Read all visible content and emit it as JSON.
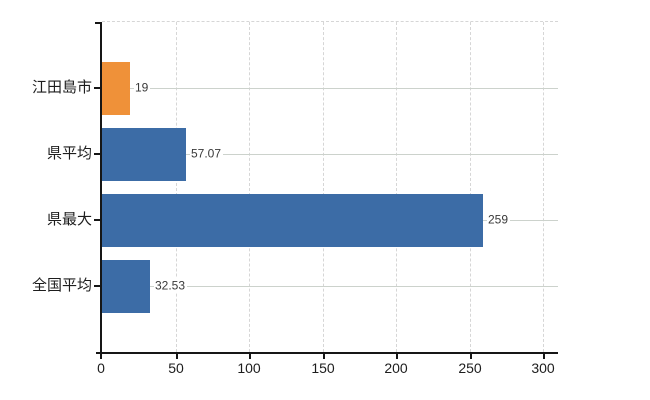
{
  "chart_data": {
    "type": "bar",
    "orientation": "horizontal",
    "title": "",
    "categories": [
      "江田島市",
      "県平均",
      "県最大",
      "全国平均"
    ],
    "values": [
      19,
      57.07,
      259,
      32.53
    ],
    "value_labels": [
      "19",
      "57.07",
      "259",
      "32.53"
    ],
    "bar_colors": [
      "#ef9139",
      "#3c6ca6",
      "#3c6ca6",
      "#3c6ca6"
    ],
    "highlight_color": "#ef9139",
    "base_color": "#3c6ca6",
    "x_tick_labels": [
      "0",
      "50",
      "100",
      "150",
      "200",
      "250",
      "300"
    ],
    "x_tick_values": [
      0,
      50,
      100,
      150,
      200,
      250,
      300
    ],
    "xlim": [
      0,
      310
    ],
    "grid": true,
    "gridline_color_vertical": "#d6d6d6",
    "gridline_color_horizontal": "#ccd2cc",
    "axis_color": "#161616",
    "legend": null
  }
}
